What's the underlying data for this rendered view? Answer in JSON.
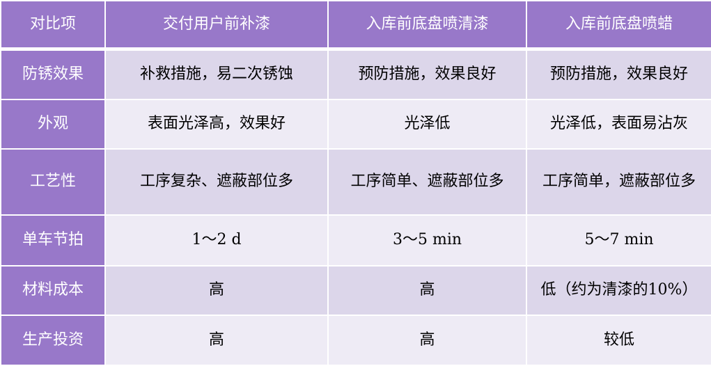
{
  "headers": [
    "对比项",
    "交付用户前补漆",
    "入库前底盘喷清漆",
    "入库前底盘喷蜡"
  ],
  "rows": [
    {
      "label": "防锈效果",
      "cells": [
        "补救措施，易二次锈蚀",
        "预防措施，效果良好",
        "预防措施，效果良好"
      ]
    },
    {
      "label": "外观",
      "cells": [
        "表面光泽高，效果好",
        "光泽低",
        "光泽低，表面易沾灰"
      ]
    },
    {
      "label": "工艺性",
      "cells": [
        "工序复杂、遮蔽部位多",
        "工序简单、遮蔽部位多",
        "工序简单，遮蔽部位多"
      ]
    },
    {
      "label": "单车节拍",
      "cells": [
        "1～2 d",
        "3～5 min",
        "5～7 min"
      ]
    },
    {
      "label": "材料成本",
      "cells": [
        "高",
        "高",
        "低（约为清漆的10%）"
      ]
    },
    {
      "label": "生产投资",
      "cells": [
        "高",
        "高",
        "较低"
      ]
    }
  ],
  "colors": {
    "header_bg": "#9878C9",
    "row_odd": "#DCD6EA",
    "row_even": "#EEEBF5"
  }
}
